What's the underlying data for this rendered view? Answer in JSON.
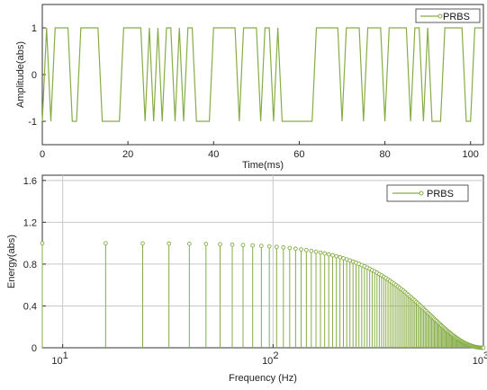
{
  "colors": {
    "series": "#86ad45",
    "grid": "#c8c8c8",
    "axis": "#333333"
  },
  "chart_data": [
    {
      "type": "line",
      "xlabel": "Time(ms)",
      "ylabel": "Amplitude(abs)",
      "xlim": [
        0,
        103
      ],
      "ylim": [
        -1.5,
        1.5
      ],
      "xticks": [
        0,
        20,
        40,
        60,
        80,
        100
      ],
      "yticks": [
        -1,
        0,
        1
      ],
      "grid": false,
      "legend": "top-right",
      "series": [
        {
          "name": "PRBS",
          "step_ms": 1,
          "values": [
            -1,
            1,
            -1,
            1,
            1,
            1,
            1,
            -1,
            -1,
            1,
            1,
            1,
            1,
            1,
            -1,
            -1,
            -1,
            -1,
            -1,
            1,
            1,
            1,
            1,
            1,
            -1,
            1,
            -1,
            1,
            -1,
            1,
            1,
            -1,
            1,
            -1,
            1,
            1,
            -1,
            -1,
            -1,
            -1,
            1,
            1,
            1,
            1,
            1,
            1,
            -1,
            1,
            1,
            1,
            1,
            -1,
            1,
            1,
            -1,
            1,
            -1,
            -1,
            -1,
            -1,
            -1,
            -1,
            -1,
            -1,
            1,
            1,
            1,
            1,
            1,
            1,
            -1,
            1,
            1,
            1,
            1,
            -1,
            1,
            1,
            1,
            1,
            -1,
            1,
            1,
            1,
            1,
            1,
            -1,
            1,
            1,
            -1,
            1,
            -1,
            -1,
            -1,
            1,
            1,
            1,
            1,
            1,
            -1,
            -1,
            1,
            1,
            1
          ]
        }
      ]
    },
    {
      "type": "stem",
      "xlabel": "Frequency (Hz)",
      "ylabel": "Energy(abs)",
      "xscale": "log",
      "xlim": [
        8,
        1000
      ],
      "ylim": [
        0,
        1.65
      ],
      "xticks": [
        {
          "value": 10,
          "base": "10",
          "exp": "1"
        },
        {
          "value": 100,
          "base": "10",
          "exp": "2"
        },
        {
          "value": 1000,
          "base": "10",
          "exp": "3"
        }
      ],
      "yticks": [
        "0",
        "0.4",
        "0.8",
        "1.2",
        "1.6"
      ],
      "grid": true,
      "legend": "top-right",
      "series": [
        {
          "name": "PRBS",
          "f0_hz": 8,
          "spacing_hz": 8,
          "count": 125,
          "amplitude": 1.0,
          "null_hz": 1000,
          "envelope": "sinc"
        }
      ]
    }
  ]
}
